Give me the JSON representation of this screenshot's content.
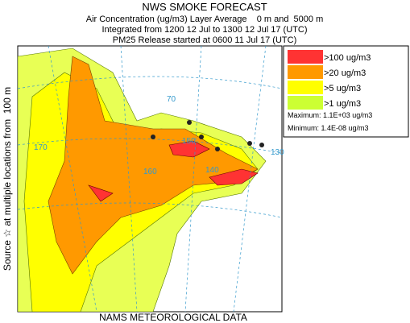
{
  "header": {
    "title": "NWS SMOKE FORECAST",
    "lines": [
      "Air Concentration (ug/m3) Layer Average    0 m and  5000 m",
      "Integrated from 1200 12 Jul to 1300 12 Jul 17 (UTC)",
      "PM25 Release started at 0600 11 Jul 17 (UTC)"
    ]
  },
  "side_label": "Source ☆ at multiple locations from  100 m",
  "legend": {
    "items": [
      {
        "label": ">100 ug/m3",
        "color": "#ff3333"
      },
      {
        "label": ">20 ug/m3",
        "color": "#ff9900"
      },
      {
        "label": ">5 ug/m3",
        "color": "#ffff00"
      },
      {
        "label": ">1 ug/m3",
        "color": "#ccff33"
      }
    ],
    "maximum": "Maximum: 1.1E+03 ug/m3",
    "minimum": "Minimum: 1.4E-08 ug/m3"
  },
  "map": {
    "labels": [
      "170",
      "160",
      "150",
      "140",
      "130",
      "70"
    ]
  },
  "footer": "NAMS METEOROLOGICAL DATA"
}
